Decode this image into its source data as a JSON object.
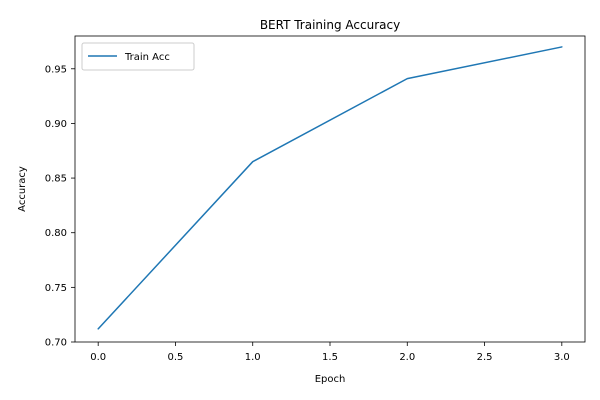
{
  "chart_data": {
    "type": "line",
    "title": "BERT Training Accuracy",
    "xlabel": "Epoch",
    "ylabel": "Accuracy",
    "xlim": [
      -0.15,
      3.15
    ],
    "ylim": [
      0.7,
      0.98
    ],
    "x_ticks": [
      0.0,
      0.5,
      1.0,
      1.5,
      2.0,
      2.5,
      3.0
    ],
    "x_tick_labels": [
      "0.0",
      "0.5",
      "1.0",
      "1.5",
      "2.0",
      "2.5",
      "3.0"
    ],
    "y_ticks": [
      0.7,
      0.75,
      0.8,
      0.85,
      0.9,
      0.95
    ],
    "y_tick_labels": [
      "0.70",
      "0.75",
      "0.80",
      "0.85",
      "0.90",
      "0.95"
    ],
    "grid": false,
    "legend_position": "top-left",
    "series": [
      {
        "name": "Train Acc",
        "color": "#1f77b4",
        "x": [
          0,
          1,
          2,
          3
        ],
        "y": [
          0.712,
          0.865,
          0.941,
          0.97
        ]
      }
    ]
  }
}
